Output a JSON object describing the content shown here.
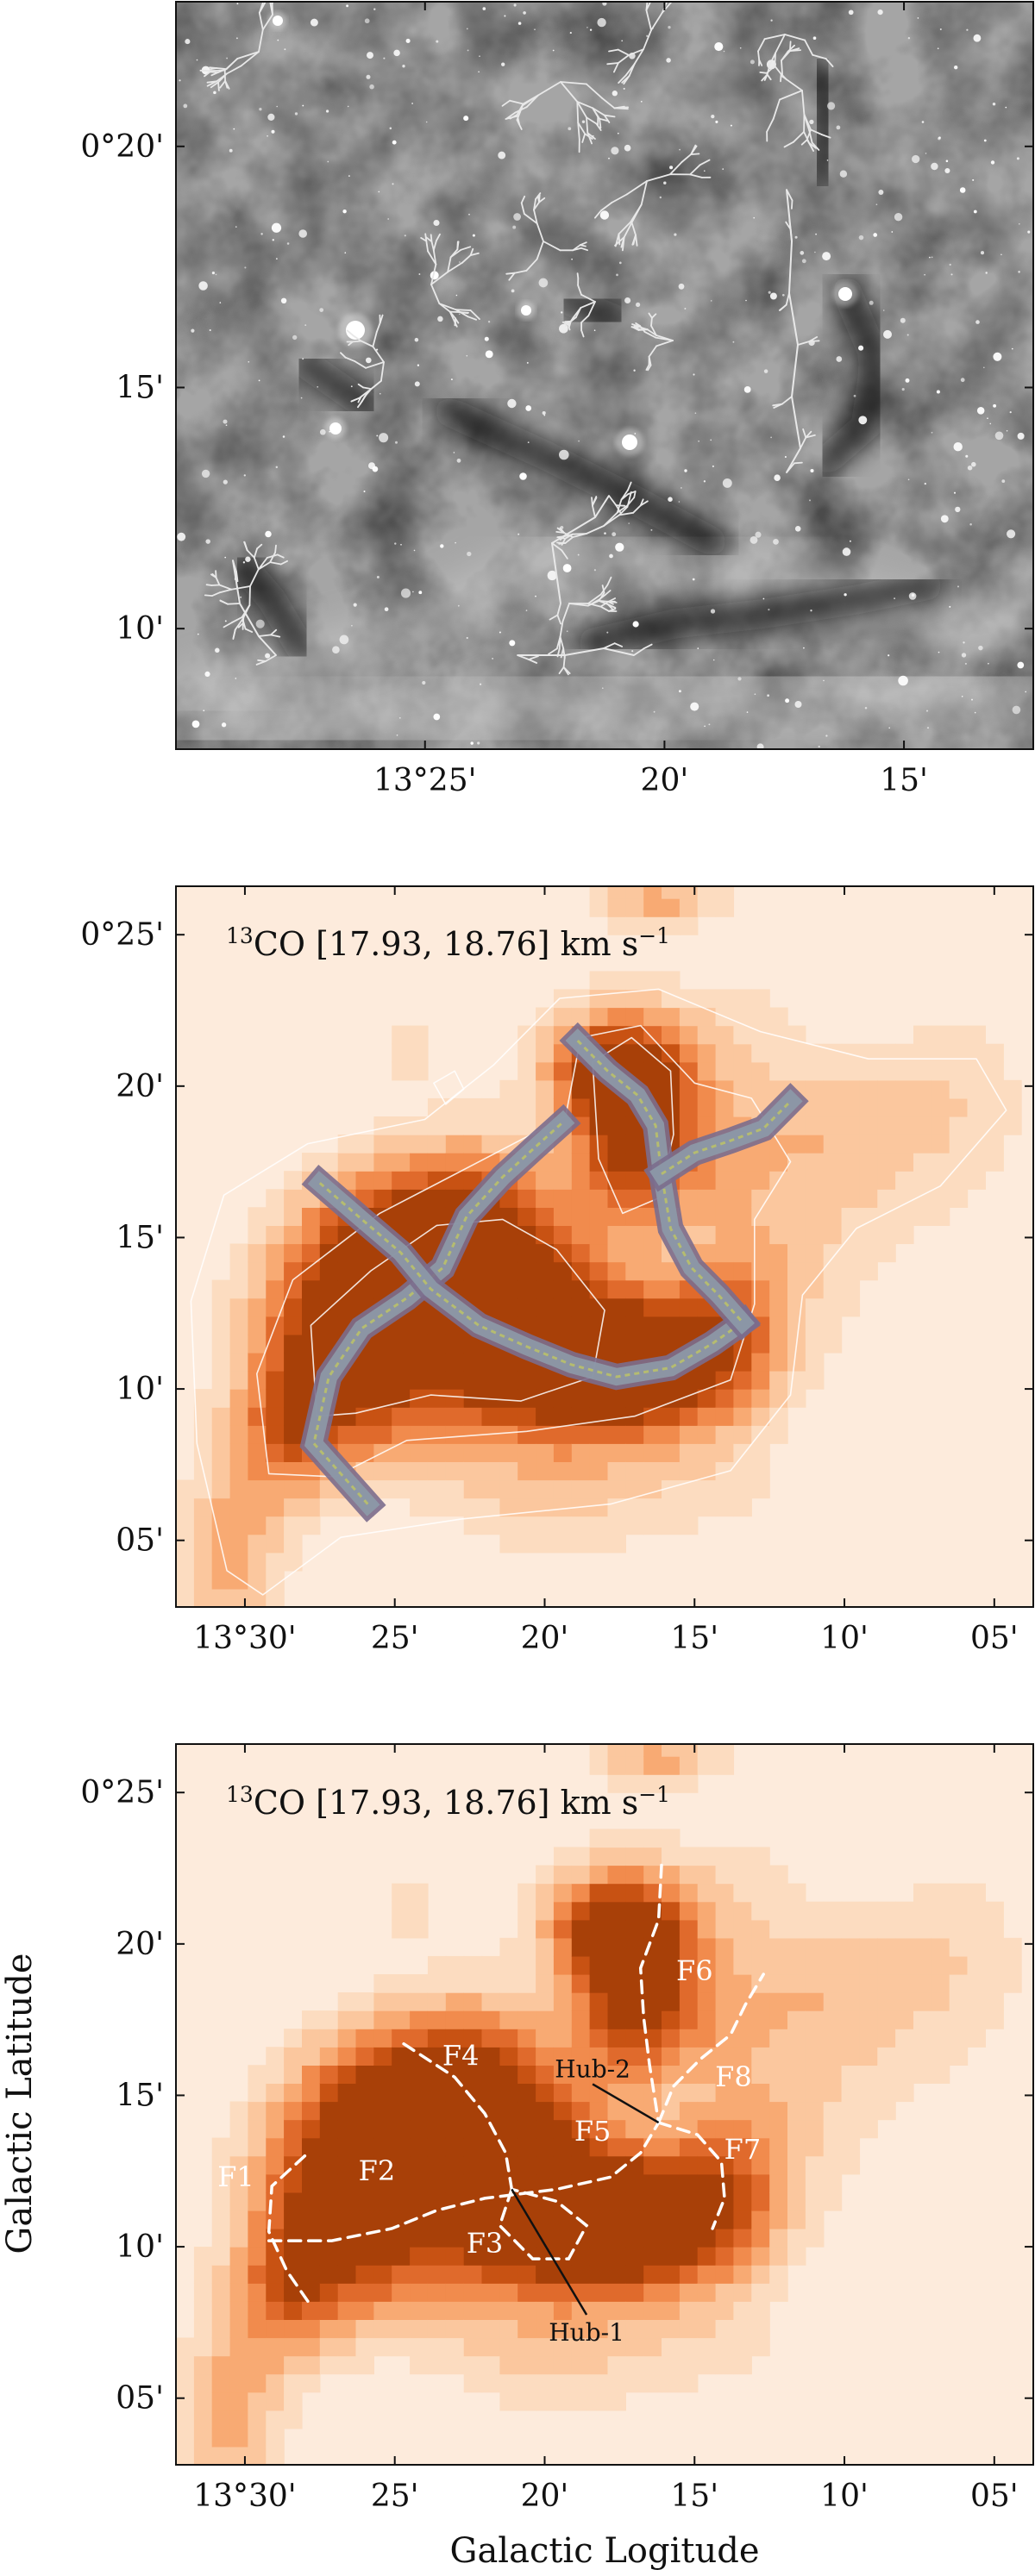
{
  "chart_data": [
    {
      "type": "heatmap",
      "image": "grayscale dust extinction map with filament skeletons",
      "x_tick_labels": [
        "13°25'",
        "20'",
        "15'"
      ],
      "x_tick_values": [
        25,
        20,
        15
      ],
      "y_tick_labels": [
        "0°20'",
        "15'",
        "10'"
      ],
      "y_tick_values": [
        20,
        15,
        10
      ],
      "xlim": [
        30.2,
        12.3
      ],
      "ylim": [
        7.5,
        23.0
      ],
      "xlabel": "",
      "ylabel": ""
    },
    {
      "type": "heatmap",
      "title": "13CO [17.93, 18.76] km s−1",
      "title_sup": "13",
      "title_main": "CO [17.93, 18.76] km s",
      "title_exp": "−1",
      "colormap": "orange",
      "x_tick_labels": [
        "13°30'",
        "25'",
        "20'",
        "15'",
        "10'",
        "05'"
      ],
      "x_tick_values": [
        30,
        25,
        20,
        15,
        10,
        5
      ],
      "y_tick_labels": [
        "0°25'",
        "20'",
        "15'",
        "10'",
        "05'"
      ],
      "y_tick_values": [
        25,
        20,
        15,
        10,
        5
      ],
      "xlim": [
        32.3,
        3.7
      ],
      "ylim": [
        2.8,
        26.6
      ],
      "skeleton_segments": [
        [
          [
            25.9,
            6.2
          ],
          [
            27.7,
            8.2
          ],
          [
            27.2,
            10.4
          ],
          [
            26.1,
            12.0
          ],
          [
            24.6,
            13.0
          ],
          [
            23.4,
            14.0
          ],
          [
            22.6,
            15.7
          ],
          [
            21.4,
            17.0
          ],
          [
            20.3,
            18.0
          ],
          [
            19.4,
            18.8
          ]
        ],
        [
          [
            27.5,
            16.8
          ],
          [
            26.1,
            15.6
          ],
          [
            24.8,
            14.5
          ],
          [
            23.8,
            13.3
          ],
          [
            22.2,
            12.1
          ],
          [
            20.6,
            11.4
          ],
          [
            19.1,
            10.8
          ],
          [
            17.6,
            10.4
          ],
          [
            15.8,
            10.7
          ],
          [
            14.4,
            11.5
          ],
          [
            13.4,
            12.2
          ]
        ],
        [
          [
            18.9,
            21.5
          ],
          [
            17.9,
            20.5
          ],
          [
            16.9,
            19.7
          ],
          [
            16.3,
            18.7
          ],
          [
            16.1,
            17.1
          ],
          [
            15.8,
            15.3
          ],
          [
            15.1,
            14.0
          ],
          [
            14.2,
            13.1
          ],
          [
            13.4,
            12.2
          ]
        ],
        [
          [
            16.1,
            17.1
          ],
          [
            15.0,
            17.8
          ],
          [
            13.8,
            18.2
          ],
          [
            12.7,
            18.6
          ],
          [
            11.8,
            19.5
          ]
        ]
      ],
      "xlabel": "",
      "ylabel": ""
    },
    {
      "type": "heatmap",
      "title": "13CO [17.93, 18.76] km s−1",
      "title_sup": "13",
      "title_main": "CO [17.93, 18.76] km s",
      "title_exp": "−1",
      "colormap": "orange",
      "x_tick_labels": [
        "13°30'",
        "25'",
        "20'",
        "15'",
        "10'",
        "05'"
      ],
      "x_tick_values": [
        30,
        25,
        20,
        15,
        10,
        5
      ],
      "y_tick_labels": [
        "0°25'",
        "20'",
        "15'",
        "10'",
        "05'"
      ],
      "y_tick_values": [
        25,
        20,
        15,
        10,
        5
      ],
      "xlim": [
        32.3,
        3.7
      ],
      "ylim": [
        2.8,
        26.6
      ],
      "xlabel": "Galactic Logitude",
      "ylabel": "Galactic Latitude",
      "filaments": [
        {
          "name": "F1",
          "label_pos": [
            30.3,
            12.0
          ],
          "points": [
            [
              28.0,
              13.0
            ],
            [
              29.1,
              12.0
            ],
            [
              29.2,
              10.5
            ],
            [
              28.6,
              9.2
            ],
            [
              27.9,
              8.2
            ]
          ]
        },
        {
          "name": "F2",
          "label_pos": [
            25.6,
            12.2
          ],
          "points": [
            [
              29.2,
              10.2
            ],
            [
              27.1,
              10.2
            ],
            [
              25.1,
              10.6
            ],
            [
              23.6,
              11.2
            ],
            [
              22.0,
              11.6
            ],
            [
              19.6,
              11.9
            ],
            [
              17.8,
              12.3
            ],
            [
              16.8,
              13.1
            ],
            [
              16.2,
              14.1
            ]
          ]
        },
        {
          "name": "F3",
          "label_pos": [
            22.0,
            9.8
          ],
          "points": [
            [
              21.1,
              11.9
            ],
            [
              21.5,
              10.7
            ],
            [
              20.4,
              9.6
            ],
            [
              19.2,
              9.6
            ],
            [
              18.6,
              10.7
            ],
            [
              19.6,
              11.5
            ],
            [
              21.1,
              11.9
            ]
          ]
        },
        {
          "name": "F4",
          "label_pos": [
            22.8,
            16.0
          ],
          "points": [
            [
              24.7,
              16.7
            ],
            [
              23.0,
              15.6
            ],
            [
              22.0,
              14.4
            ],
            [
              21.3,
              13.1
            ],
            [
              21.1,
              11.9
            ]
          ]
        },
        {
          "name": "F5",
          "label_pos": [
            18.4,
            13.5
          ],
          "points": [
            [
              16.2,
              14.1
            ]
          ]
        },
        {
          "name": "F6",
          "label_pos": [
            15.0,
            18.8
          ],
          "points": [
            [
              16.1,
              22.6
            ],
            [
              16.2,
              20.8
            ],
            [
              16.8,
              19.2
            ],
            [
              16.7,
              17.6
            ],
            [
              16.5,
              16.0
            ],
            [
              16.2,
              14.1
            ]
          ]
        },
        {
          "name": "F7",
          "label_pos": [
            13.4,
            12.9
          ],
          "points": [
            [
              16.2,
              14.1
            ],
            [
              14.9,
              13.7
            ],
            [
              14.1,
              12.8
            ],
            [
              14.0,
              11.6
            ],
            [
              14.4,
              10.6
            ]
          ]
        },
        {
          "name": "F8",
          "label_pos": [
            13.7,
            15.3
          ],
          "points": [
            [
              16.2,
              14.1
            ],
            [
              15.7,
              15.3
            ],
            [
              14.8,
              16.2
            ],
            [
              13.8,
              17.0
            ],
            [
              13.3,
              18.0
            ],
            [
              12.7,
              19.0
            ]
          ]
        }
      ],
      "hubs": [
        {
          "name": "Hub-1",
          "point": [
            21.1,
            11.9
          ],
          "label_pos": [
            18.6,
            6.9
          ]
        },
        {
          "name": "Hub-2",
          "point": [
            16.2,
            14.1
          ],
          "label_pos": [
            18.4,
            15.6
          ]
        }
      ]
    }
  ]
}
